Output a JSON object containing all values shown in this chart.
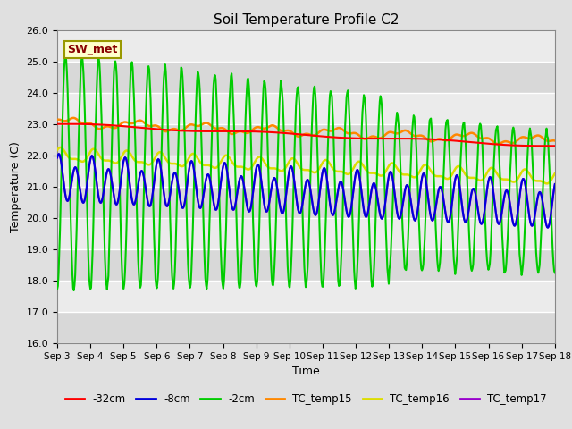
{
  "title": "Soil Temperature Profile C2",
  "xlabel": "Time",
  "ylabel": "Temperature (C)",
  "ylim": [
    16.0,
    26.0
  ],
  "yticks": [
    16.0,
    17.0,
    18.0,
    19.0,
    20.0,
    21.0,
    22.0,
    23.0,
    24.0,
    25.0,
    26.0
  ],
  "bg_color": "#e0e0e0",
  "plot_bg_color_light": "#ebebeb",
  "plot_bg_color_dark": "#d8d8d8",
  "annotation_text": "SW_met",
  "annotation_bg": "#ffffcc",
  "annotation_border": "#999900",
  "annotation_text_color": "#880000",
  "colors": {
    "minus32cm": "#ff0000",
    "minus8cm": "#0000dd",
    "minus2cm": "#00cc00",
    "TC_temp15": "#ff8800",
    "TC_temp16": "#dddd00",
    "TC_temp17": "#9900cc"
  },
  "legend_labels": [
    "-32cm",
    "-8cm",
    "-2cm",
    "TC_temp15",
    "TC_temp16",
    "TC_temp17"
  ]
}
